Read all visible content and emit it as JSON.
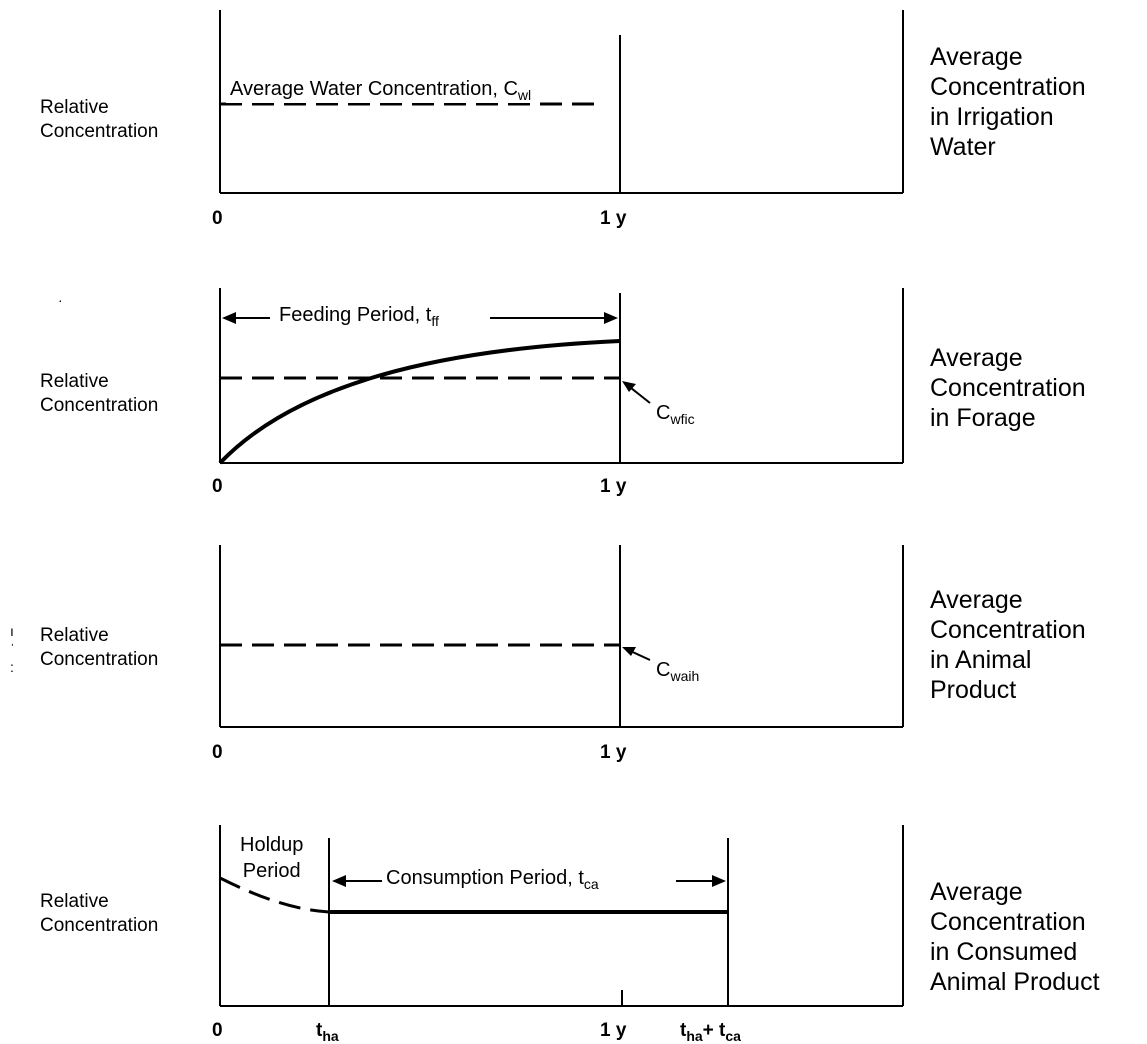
{
  "panels": [
    {
      "ylabel": [
        "Relative",
        "Concentration"
      ],
      "right_label": [
        "Average",
        "Concentration",
        "in Irrigation",
        "Water"
      ],
      "annotation": {
        "text": "Average Water Concentration, C",
        "sub": "wl"
      },
      "xticks": [
        "0",
        "1 y"
      ]
    },
    {
      "ylabel": [
        "Relative",
        "Concentration"
      ],
      "right_label": [
        "Average",
        "Concentration",
        "in Forage"
      ],
      "period_label": {
        "text": "Feeding Period, t",
        "sub": "ff"
      },
      "marker_label": {
        "text": "C",
        "sub": "wfic"
      },
      "xticks": [
        "0",
        "1 y"
      ]
    },
    {
      "ylabel": [
        "Relative",
        "Concentration"
      ],
      "right_label": [
        "Average",
        "Concentration",
        "in Animal",
        "Product"
      ],
      "marker_label": {
        "text": "C",
        "sub": "waih"
      },
      "xticks": [
        "0",
        "1 y"
      ]
    },
    {
      "ylabel": [
        "Relative",
        "Concentration"
      ],
      "right_label": [
        "Average",
        "Concentration",
        "in Consumed",
        "Animal Product"
      ],
      "holdup_label": [
        "Holdup",
        "Period"
      ],
      "period_label": {
        "text": "Consumption Period, t",
        "sub": "ca"
      },
      "xticks": {
        "zero": "0",
        "tha": {
          "text": "t",
          "sub": "ha"
        },
        "year": "1 y",
        "sum": {
          "text": "t",
          "sub1": "ha",
          "plus": "+ t",
          "sub2": "ca"
        }
      }
    }
  ],
  "colors": {
    "line": "#000000",
    "background": "#ffffff"
  }
}
